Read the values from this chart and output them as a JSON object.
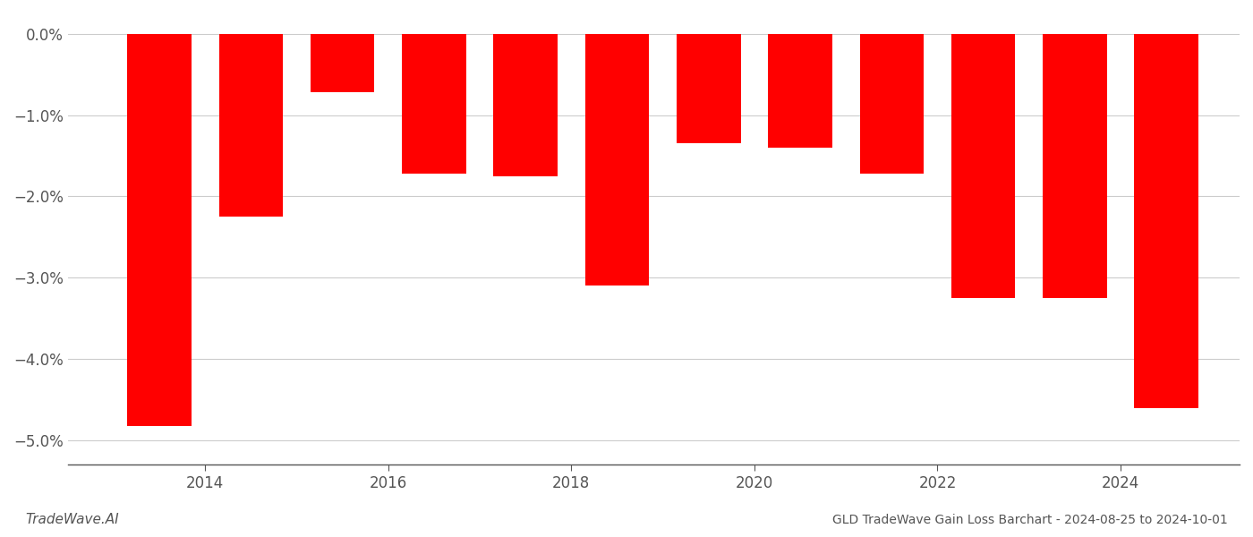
{
  "years": [
    2013,
    2014,
    2015,
    2016,
    2017,
    2018,
    2019,
    2020,
    2021,
    2022,
    2023,
    2024
  ],
  "values": [
    -4.82,
    -2.25,
    -0.72,
    -1.72,
    -1.75,
    -3.1,
    -1.35,
    -1.4,
    -1.72,
    -3.25,
    -3.25,
    -4.6
  ],
  "bar_color": "#ff0000",
  "bar_width": 0.7,
  "ylim": [
    -5.3,
    0.25
  ],
  "yticks": [
    0.0,
    -1.0,
    -2.0,
    -3.0,
    -4.0,
    -5.0
  ],
  "xtick_positions": [
    2014,
    2016,
    2018,
    2020,
    2022,
    2024
  ],
  "title": "GLD TradeWave Gain Loss Barchart - 2024-08-25 to 2024-10-01",
  "footer_left": "TradeWave.AI",
  "background_color": "#ffffff",
  "grid_color": "#cccccc",
  "tick_label_color": "#555555",
  "title_color": "#555555",
  "footer_color": "#555555"
}
